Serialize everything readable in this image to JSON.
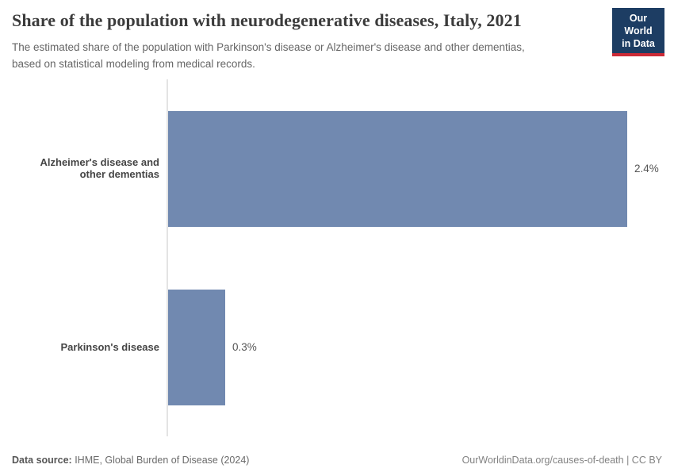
{
  "header": {
    "title": "Share of the population with neurodegenerative diseases, Italy, 2021",
    "subtitle_line1": "The estimated share of the population with Parkinson's disease or Alzheimer's disease and other dementias,",
    "subtitle_line2": "based on statistical modeling from medical records.",
    "logo": {
      "line1": "Our World",
      "line2": "in Data",
      "bg_color": "#1d3d63",
      "accent_color": "#cc2a36"
    }
  },
  "chart_data": {
    "type": "bar",
    "orientation": "horizontal",
    "title": "Share of the population with neurodegenerative diseases, Italy, 2021",
    "categories": [
      "Alzheimer's disease and other dementias",
      "Parkinson's disease"
    ],
    "values": [
      2.4,
      0.3
    ],
    "value_labels": [
      "2.4%",
      "0.3%"
    ],
    "xlabel": "",
    "ylabel": "",
    "xlim": [
      0,
      2.4
    ],
    "grid": false,
    "legend": false,
    "bar_color": "#7189b0",
    "axis_line_color": "#e4e4e4"
  },
  "footer": {
    "source_label": "Data source:",
    "source_text": " IHME, Global Burden of Disease (2024)",
    "credit": "OurWorldinData.org/causes-of-death | CC BY"
  }
}
